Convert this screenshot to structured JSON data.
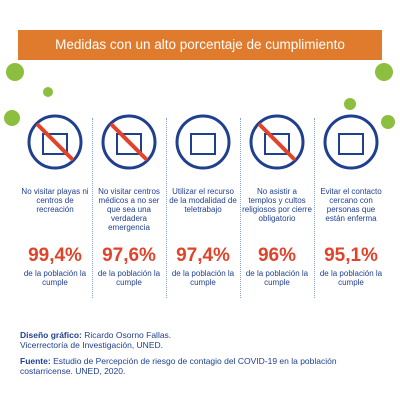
{
  "header": {
    "title": "Medidas con un alto porcentaje de cumplimiento"
  },
  "items": [
    {
      "label": "No visitar playas ni centros de recreación",
      "value": "99,4%",
      "note": "de la población la cumple"
    },
    {
      "label": "No visitar centros médicos a no ser que sea una verdadera emergencia",
      "value": "97,6%",
      "note": "de la población la cumple"
    },
    {
      "label": "Utilizar el recurso de la modalidad de teletrabajo",
      "value": "97,4%",
      "note": "de la población la cumple"
    },
    {
      "label": "No asistir a templos y cultos religiosos por cierre obligatorio",
      "value": "96%",
      "note": "de la población la cumple"
    },
    {
      "label": "Evitar el contacto cercano con personas que están enferma",
      "value": "95,1%",
      "note": "de la población la cumple"
    }
  ],
  "credits": {
    "design_label": "Diseño gráfico:",
    "design_text": "Ricardo Osorno Fallas.",
    "institution": "Vicerrectoría de Investigación, UNED.",
    "source_label": "Fuente:",
    "source_text": "Estudio de Percepción de riesgo de contagio del COVID-19 en la población costarricense. UNED, 2020."
  }
}
